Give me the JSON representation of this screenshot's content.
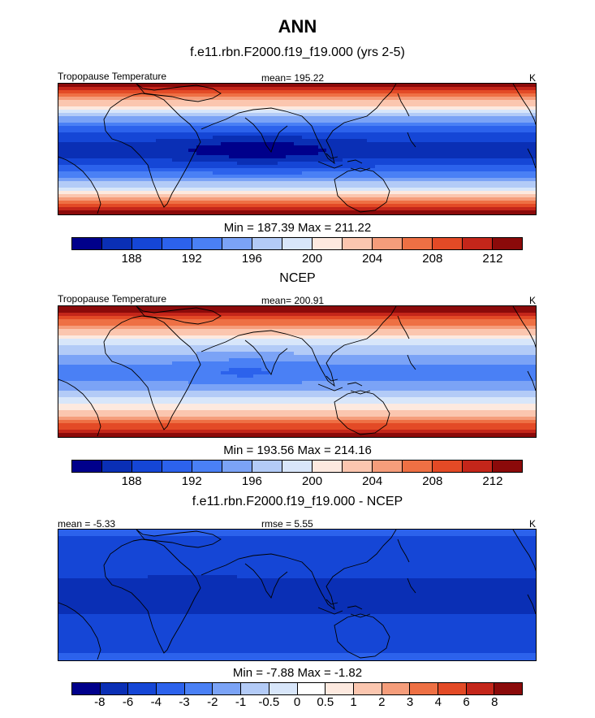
{
  "figure": {
    "title": "ANN"
  },
  "chart_data": [
    {
      "type": "heatmap",
      "title": "f.e11.rbn.F2000.f19_f19.000 (yrs 2-5)",
      "left_label": "Tropopause Temperature",
      "center_label": "mean= 195.22",
      "units": "K",
      "min_max_label": "Min = 187.39 Max = 211.22",
      "min": 187.39,
      "max": 211.22,
      "mean": 195.22,
      "colorbar_ticks": [
        "188",
        "192",
        "196",
        "200",
        "204",
        "208",
        "212"
      ],
      "colorbar_levels": [
        186,
        188,
        190,
        192,
        194,
        196,
        198,
        200,
        202,
        204,
        206,
        208,
        210,
        212,
        214
      ]
    },
    {
      "type": "heatmap",
      "title": "NCEP",
      "left_label": "Tropopause Temperature",
      "center_label": "mean= 200.91",
      "units": "K",
      "min_max_label": "Min = 193.56 Max = 214.16",
      "min": 193.56,
      "max": 214.16,
      "mean": 200.91,
      "colorbar_ticks": [
        "188",
        "192",
        "196",
        "200",
        "204",
        "208",
        "212"
      ],
      "colorbar_levels": [
        186,
        188,
        190,
        192,
        194,
        196,
        198,
        200,
        202,
        204,
        206,
        208,
        210,
        212,
        214
      ]
    },
    {
      "type": "heatmap",
      "title": "f.e11.rbn.F2000.f19_f19.000 - NCEP",
      "left_label": "mean =  -5.33",
      "center_label": "rmse =   5.55",
      "units": "K",
      "min_max_label": "Min =  -7.88 Max =  -1.82",
      "min": -7.88,
      "max": -1.82,
      "mean": -5.33,
      "rmse": 5.55,
      "colorbar_ticks": [
        "-8",
        "-6",
        "-4",
        "-3",
        "-2",
        "-1",
        "-0.5",
        "0",
        "0.5",
        "1",
        "2",
        "3",
        "4",
        "6",
        "8"
      ]
    }
  ],
  "colormap": [
    "#00008b",
    "#0a2fb5",
    "#1546d6",
    "#2c62ec",
    "#4a80f5",
    "#7ba3f6",
    "#b3cbf7",
    "#d8e6fa",
    "#fde9df",
    "#fbc6af",
    "#f59d7b",
    "#ee7044",
    "#e34a26",
    "#c4261a",
    "#8b0a0a"
  ]
}
